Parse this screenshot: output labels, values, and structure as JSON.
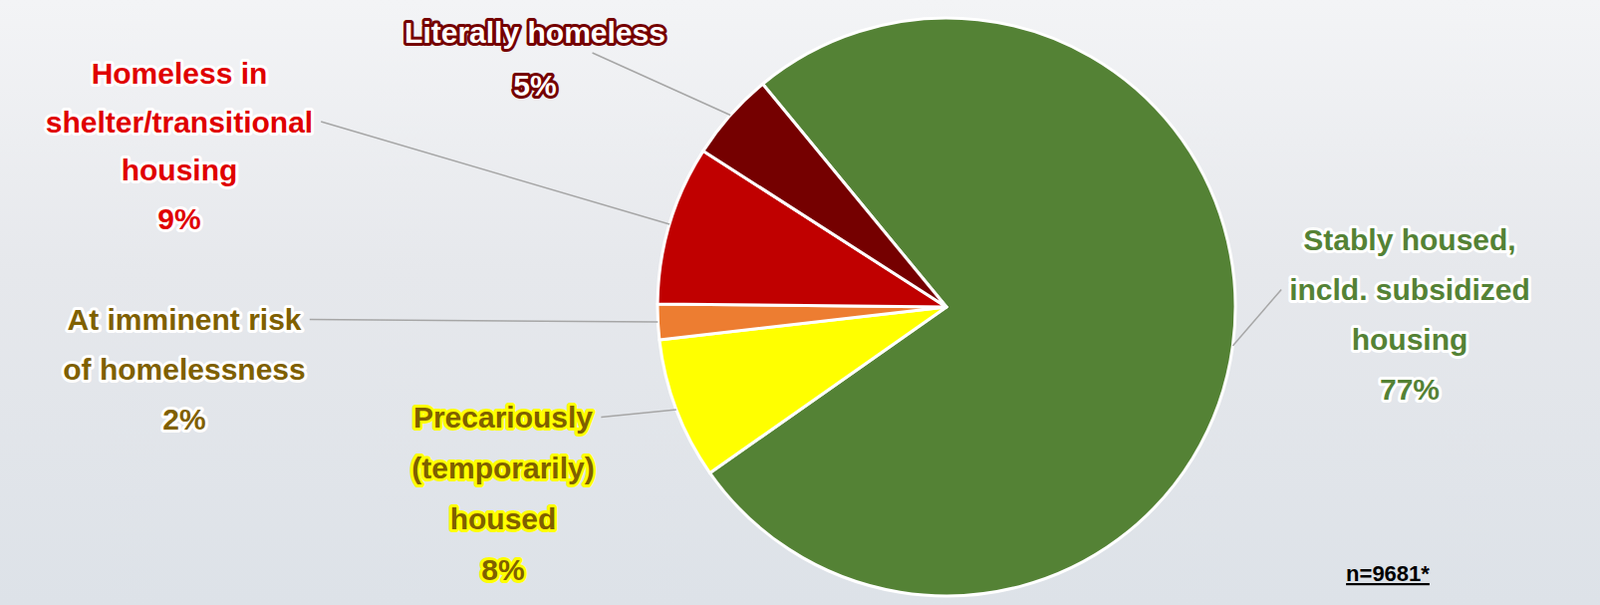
{
  "chart_data": {
    "type": "pie",
    "categories": [
      "Stably housed, incld. subsidized housing",
      "Precariously (temporarily) housed",
      "At imminent risk of homelessness",
      "Homeless in shelter/transitional housing",
      "Literally homeless"
    ],
    "values": [
      77,
      8,
      2,
      9,
      5
    ],
    "value_labels": [
      "77%",
      "8%",
      "2%",
      "9%",
      "5%"
    ],
    "colors": [
      "#548235",
      "#ffff00",
      "#ed7d31",
      "#c00000",
      "#750000"
    ],
    "data_labels": true,
    "annotations": [
      "n=9681*"
    ]
  }
}
